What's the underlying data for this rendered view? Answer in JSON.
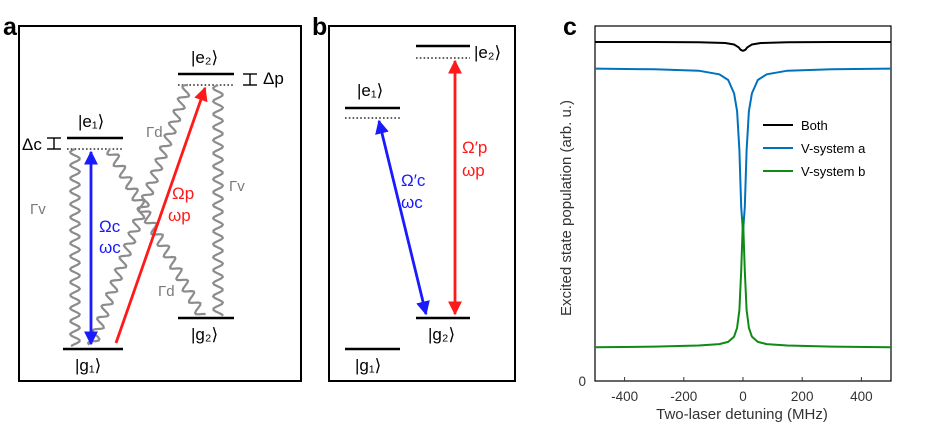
{
  "panels": {
    "a": {
      "letter": "a",
      "levels": {
        "e1": "|e₁⟩",
        "e2": "|e₂⟩",
        "g1": "|g₁⟩",
        "g2": "|g₂⟩"
      },
      "detunings": {
        "c": "Δc",
        "p": "Δp"
      },
      "decays": {
        "gv_left": "Γv",
        "gd_top": "Γd",
        "gv_right": "Γv",
        "gd_bottom": "Γd"
      },
      "coupling": {
        "rabi": "Ωc",
        "freq": "ωc",
        "color": "#1a1aff"
      },
      "probe": {
        "rabi": "Ωp",
        "freq": "ωp",
        "color": "#ff1a1a"
      }
    },
    "b": {
      "letter": "b",
      "levels": {
        "e1": "|e₁⟩",
        "e2": "|e₂⟩",
        "g1": "|g₁⟩",
        "g2": "|g₂⟩"
      },
      "coupling": {
        "rabi": "Ω′c",
        "freq": "ωc",
        "color": "#1a1aff"
      },
      "probe": {
        "rabi": "Ω′p",
        "freq": "ωp",
        "color": "#ff1a1a"
      }
    },
    "c": {
      "letter": "c"
    }
  },
  "chart_data": {
    "type": "line",
    "xlabel": "Two-laser detuning (MHz)",
    "ylabel": "Excited state population (arb. u.)",
    "xlim": [
      -500,
      500
    ],
    "ylim": [
      0,
      1
    ],
    "xticks": [
      -400,
      -200,
      0,
      200,
      400
    ],
    "yticks": [
      0
    ],
    "legend_position": "right",
    "series": [
      {
        "name": "Both",
        "color": "#000000",
        "x": [
          -500,
          -300,
          -150,
          -60,
          -30,
          -15,
          -8,
          0,
          8,
          15,
          30,
          60,
          150,
          300,
          500
        ],
        "y": [
          0.955,
          0.955,
          0.954,
          0.952,
          0.948,
          0.94,
          0.933,
          0.93,
          0.933,
          0.94,
          0.948,
          0.952,
          0.954,
          0.955,
          0.955
        ]
      },
      {
        "name": "V-system a",
        "color": "#0072bd",
        "x": [
          -500,
          -300,
          -150,
          -80,
          -50,
          -30,
          -20,
          -12,
          -6,
          0,
          6,
          12,
          20,
          30,
          50,
          80,
          150,
          300,
          500
        ],
        "y": [
          0.88,
          0.878,
          0.874,
          0.864,
          0.848,
          0.81,
          0.76,
          0.65,
          0.49,
          0.42,
          0.49,
          0.65,
          0.76,
          0.81,
          0.848,
          0.864,
          0.874,
          0.878,
          0.88
        ]
      },
      {
        "name": "V-system b",
        "color": "#0f8a16",
        "x": [
          -500,
          -300,
          -150,
          -80,
          -50,
          -30,
          -20,
          -12,
          -6,
          0,
          6,
          12,
          20,
          30,
          50,
          80,
          150,
          300,
          500
        ],
        "y": [
          0.095,
          0.097,
          0.1,
          0.104,
          0.11,
          0.125,
          0.15,
          0.2,
          0.31,
          0.46,
          0.31,
          0.2,
          0.15,
          0.125,
          0.11,
          0.104,
          0.1,
          0.097,
          0.095
        ]
      }
    ]
  }
}
